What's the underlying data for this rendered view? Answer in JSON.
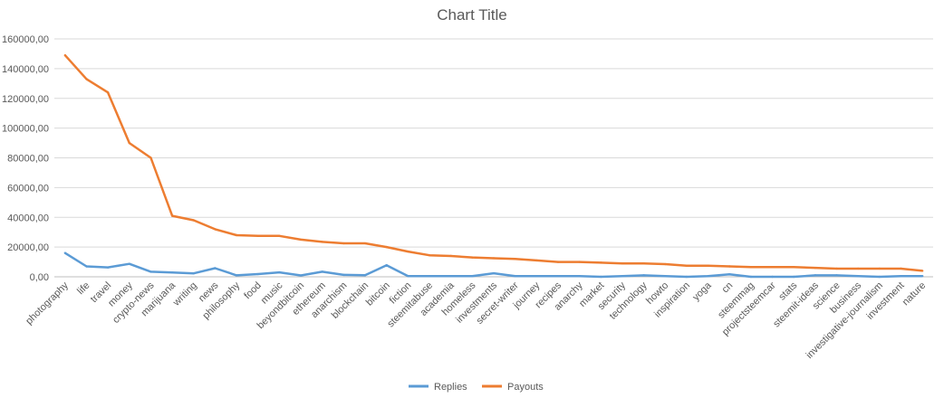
{
  "chart_data": {
    "type": "line",
    "title": "Chart Title",
    "xlabel": "",
    "ylabel": "",
    "ylim": [
      0,
      160000
    ],
    "yticks": [
      "0,00",
      "20000,00",
      "40000,00",
      "60000,00",
      "80000,00",
      "100000,00",
      "120000,00",
      "140000,00",
      "160000,00"
    ],
    "grid": true,
    "legend_position": "bottom",
    "categories": [
      "photography",
      "life",
      "travel",
      "money",
      "crypto-news",
      "marijuana",
      "writing",
      "news",
      "philosophy",
      "food",
      "music",
      "beyondbitcoin",
      "ethereum",
      "anarchism",
      "blockchain",
      "bitcoin",
      "fiction",
      "steemitabuse",
      "academia",
      "homeless",
      "investments",
      "secret-writer",
      "journey",
      "recipes",
      "anarchy",
      "market",
      "security",
      "technology",
      "howto",
      "inspiration",
      "yoga",
      "cn",
      "steemmag",
      "projectsteemcar",
      "stats",
      "steemit-ideas",
      "science",
      "business",
      "investigative-journalism",
      "investment",
      "nature"
    ],
    "series": [
      {
        "name": "Replies",
        "color": "#5b9bd5",
        "values": [
          16000,
          7000,
          6300,
          8700,
          3400,
          2900,
          2300,
          5800,
          1000,
          1800,
          3000,
          900,
          3400,
          1300,
          1100,
          7800,
          500,
          500,
          500,
          500,
          2400,
          500,
          500,
          500,
          500,
          0,
          500,
          1000,
          500,
          0,
          500,
          1700,
          0,
          0,
          0,
          1000,
          1000,
          500,
          0,
          500,
          500
        ]
      },
      {
        "name": "Payouts",
        "color": "#ed7d31",
        "values": [
          149000,
          133000,
          124000,
          90000,
          80000,
          41000,
          38000,
          32000,
          28000,
          27500,
          27500,
          25000,
          23500,
          22500,
          22500,
          20000,
          17000,
          14500,
          14000,
          13000,
          12500,
          12000,
          11000,
          10000,
          10000,
          9500,
          9000,
          9000,
          8500,
          7500,
          7500,
          7000,
          6500,
          6500,
          6500,
          6000,
          5500,
          5500,
          5500,
          5500,
          4000
        ]
      }
    ]
  }
}
